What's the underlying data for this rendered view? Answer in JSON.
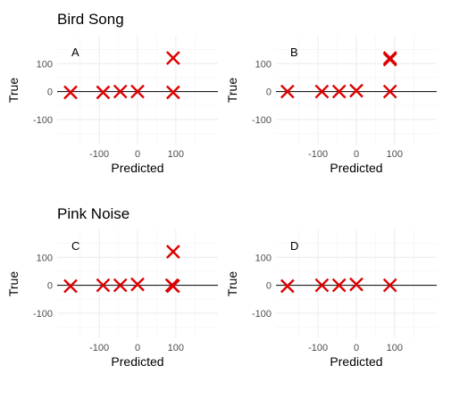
{
  "section_titles": [
    "Bird Song",
    "Pink Noise"
  ],
  "colors": {
    "marker": "#dd0000",
    "reference_line": "#000000",
    "grid": "#ebebeb"
  },
  "chart_data": [
    {
      "type": "scatter",
      "panel_label": "A",
      "section": "Bird Song",
      "xlabel": "Predicted",
      "ylabel": "True",
      "xlim": [
        -210,
        210
      ],
      "ylim": [
        -190,
        200
      ],
      "xticks": [
        -100,
        0,
        100
      ],
      "xtick_labels": [
        "-100",
        "0",
        "100"
      ],
      "yticks": [
        -100,
        0,
        100
      ],
      "ytick_labels": [
        "-100",
        "0",
        "100"
      ],
      "reference_line": {
        "y": 0
      },
      "marker": "x",
      "points": [
        [
          -175,
          -3
        ],
        [
          -90,
          -3
        ],
        [
          -45,
          0
        ],
        [
          0,
          0
        ],
        [
          93,
          -3
        ],
        [
          93,
          120
        ]
      ]
    },
    {
      "type": "scatter",
      "panel_label": "B",
      "section": "Bird Song",
      "xlabel": "Predicted",
      "ylabel": "True",
      "xlim": [
        -210,
        210
      ],
      "ylim": [
        -190,
        200
      ],
      "xticks": [
        -100,
        0,
        100
      ],
      "xtick_labels": [
        "-100",
        "0",
        "100"
      ],
      "yticks": [
        -100,
        0,
        100
      ],
      "ytick_labels": [
        "-100",
        "0",
        "100"
      ],
      "reference_line": {
        "y": 0
      },
      "marker": "x",
      "points": [
        [
          -180,
          0
        ],
        [
          -90,
          0
        ],
        [
          -45,
          0
        ],
        [
          0,
          3
        ],
        [
          88,
          0
        ],
        [
          88,
          115
        ],
        [
          88,
          120
        ]
      ]
    },
    {
      "type": "scatter",
      "panel_label": "C",
      "section": "Pink Noise",
      "xlabel": "Predicted",
      "ylabel": "True",
      "xlim": [
        -210,
        210
      ],
      "ylim": [
        -190,
        200
      ],
      "xticks": [
        -100,
        0,
        100
      ],
      "xtick_labels": [
        "-100",
        "0",
        "100"
      ],
      "yticks": [
        -100,
        0,
        100
      ],
      "ytick_labels": [
        "-100",
        "0",
        "100"
      ],
      "reference_line": {
        "y": 0
      },
      "marker": "x",
      "points": [
        [
          -175,
          -3
        ],
        [
          -90,
          0
        ],
        [
          -45,
          0
        ],
        [
          0,
          3
        ],
        [
          90,
          0
        ],
        [
          93,
          -3
        ],
        [
          93,
          120
        ]
      ]
    },
    {
      "type": "scatter",
      "panel_label": "D",
      "section": "Pink Noise",
      "xlabel": "Predicted",
      "ylabel": "True",
      "xlim": [
        -210,
        210
      ],
      "ylim": [
        -190,
        200
      ],
      "xticks": [
        -100,
        0,
        100
      ],
      "xtick_labels": [
        "-100",
        "0",
        "100"
      ],
      "yticks": [
        -100,
        0,
        100
      ],
      "ytick_labels": [
        "-100",
        "0",
        "100"
      ],
      "reference_line": {
        "y": 0
      },
      "marker": "x",
      "points": [
        [
          -180,
          -3
        ],
        [
          -90,
          0
        ],
        [
          -45,
          0
        ],
        [
          0,
          3
        ],
        [
          88,
          0
        ]
      ]
    }
  ]
}
